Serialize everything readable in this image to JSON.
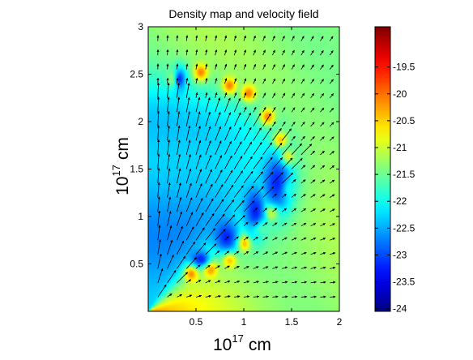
{
  "chart_data": {
    "type": "heatmap",
    "title": "Density map and velocity field",
    "xlabel": "10^17 cm",
    "ylabel": "10^17 cm",
    "axis_label_base": "10",
    "axis_label_exponent": "17",
    "axis_label_unit": "cm",
    "xlim": [
      0,
      2
    ],
    "ylim": [
      0,
      3
    ],
    "xticks": [
      "0.5",
      "1",
      "1.5",
      "2"
    ],
    "xtick_values": [
      0.5,
      1,
      1.5,
      2
    ],
    "yticks": [
      "0.5",
      "1",
      "1.5",
      "2",
      "2.5",
      "3"
    ],
    "ytick_values": [
      0.5,
      1,
      1.5,
      2,
      2.5,
      3
    ],
    "colorbar": {
      "range": [
        -24.05,
        -18.75
      ],
      "ticks": [
        "-19.5",
        "-20",
        "-20.5",
        "-21",
        "-21.5",
        "-22",
        "-22.5",
        "-23",
        "-23.5",
        "-24"
      ],
      "tick_values": [
        -19.5,
        -20,
        -20.5,
        -21,
        -21.5,
        -22,
        -22.5,
        -23,
        -23.5,
        -24
      ],
      "colormap": "jet"
    },
    "density_features": {
      "background_level": -21.3,
      "cavity_level": -22.5,
      "cavity_cone_half_angle_deg": 33,
      "cavity_radius": 2.3,
      "dense_wedge_level": -20.1,
      "shell_level": -19.9,
      "blob_level": -23.3
    },
    "velocity_field": {
      "arrow_spacing_x": 0.1,
      "arrow_spacing_y": 0.15,
      "outflow_speed_scale": 0.16,
      "ambient_direction": "outward"
    }
  }
}
